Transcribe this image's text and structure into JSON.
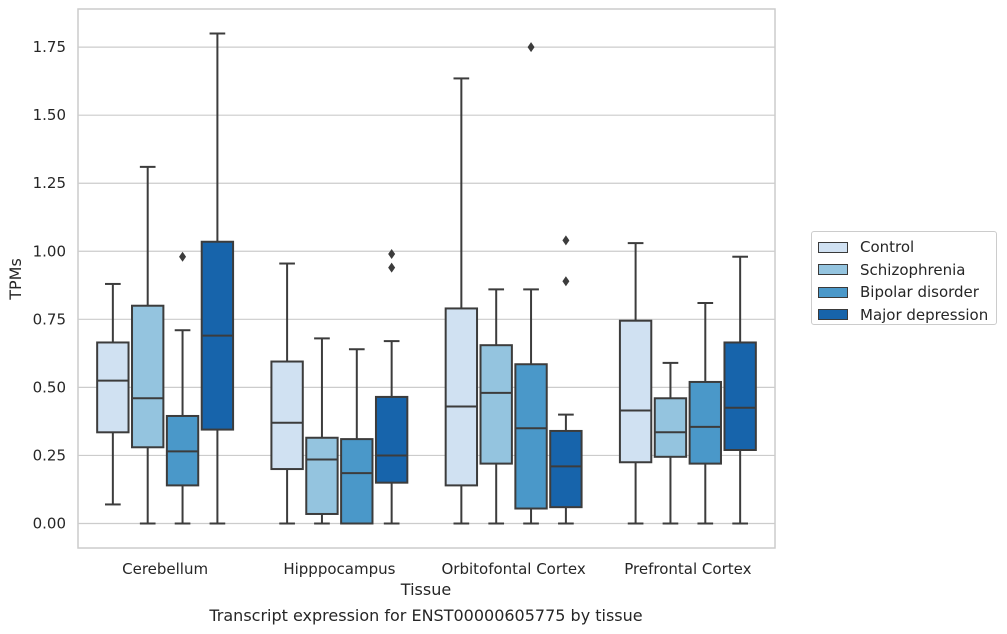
{
  "chart_data": {
    "type": "box",
    "ylabel": "TPMs",
    "xlabel": "Tissue",
    "caption": "Transcript expression for ENST00000605775 by tissue",
    "ylim": [
      -0.09,
      1.89
    ],
    "yticks": [
      "0.00",
      "0.25",
      "0.50",
      "0.75",
      "1.00",
      "1.25",
      "1.50",
      "1.75"
    ],
    "grid": true,
    "legend_position": "right",
    "categories": [
      "Cerebellum",
      "Hipppocampus",
      "Orbitofontal Cortex",
      "Prefrontal Cortex"
    ],
    "series": [
      {
        "name": "Control",
        "color": "#d0e1f2",
        "boxes": [
          {
            "whisker_low": 0.07,
            "q1": 0.335,
            "median": 0.525,
            "q3": 0.665,
            "whisker_high": 0.88,
            "outliers": []
          },
          {
            "whisker_low": 0.0,
            "q1": 0.2,
            "median": 0.37,
            "q3": 0.595,
            "whisker_high": 0.955,
            "outliers": []
          },
          {
            "whisker_low": 0.0,
            "q1": 0.14,
            "median": 0.43,
            "q3": 0.79,
            "whisker_high": 1.635,
            "outliers": []
          },
          {
            "whisker_low": 0.0,
            "q1": 0.225,
            "median": 0.415,
            "q3": 0.745,
            "whisker_high": 1.03,
            "outliers": []
          }
        ]
      },
      {
        "name": "Schizophrenia",
        "color": "#94c4df",
        "boxes": [
          {
            "whisker_low": 0.0,
            "q1": 0.28,
            "median": 0.46,
            "q3": 0.8,
            "whisker_high": 1.31,
            "outliers": []
          },
          {
            "whisker_low": 0.0,
            "q1": 0.035,
            "median": 0.235,
            "q3": 0.315,
            "whisker_high": 0.68,
            "outliers": []
          },
          {
            "whisker_low": 0.0,
            "q1": 0.22,
            "median": 0.48,
            "q3": 0.655,
            "whisker_high": 0.86,
            "outliers": []
          },
          {
            "whisker_low": 0.0,
            "q1": 0.245,
            "median": 0.335,
            "q3": 0.46,
            "whisker_high": 0.59,
            "outliers": []
          }
        ]
      },
      {
        "name": "Bipolar disorder",
        "color": "#4a98c9",
        "boxes": [
          {
            "whisker_low": 0.0,
            "q1": 0.14,
            "median": 0.265,
            "q3": 0.395,
            "whisker_high": 0.71,
            "outliers": [
              0.98
            ]
          },
          {
            "whisker_low": 0.0,
            "q1": 0.0,
            "median": 0.185,
            "q3": 0.31,
            "whisker_high": 0.64,
            "outliers": []
          },
          {
            "whisker_low": 0.0,
            "q1": 0.055,
            "median": 0.35,
            "q3": 0.585,
            "whisker_high": 0.86,
            "outliers": [
              1.75
            ]
          },
          {
            "whisker_low": 0.0,
            "q1": 0.22,
            "median": 0.355,
            "q3": 0.52,
            "whisker_high": 0.81,
            "outliers": []
          }
        ]
      },
      {
        "name": "Major depression",
        "color": "#1764ab",
        "boxes": [
          {
            "whisker_low": 0.0,
            "q1": 0.345,
            "median": 0.69,
            "q3": 1.035,
            "whisker_high": 1.8,
            "outliers": []
          },
          {
            "whisker_low": 0.0,
            "q1": 0.15,
            "median": 0.25,
            "q3": 0.465,
            "whisker_high": 0.67,
            "outliers": [
              0.94,
              0.99
            ]
          },
          {
            "whisker_low": 0.0,
            "q1": 0.06,
            "median": 0.21,
            "q3": 0.34,
            "whisker_high": 0.4,
            "outliers": [
              0.89,
              1.04
            ]
          },
          {
            "whisker_low": 0.0,
            "q1": 0.27,
            "median": 0.425,
            "q3": 0.665,
            "whisker_high": 0.98,
            "outliers": []
          }
        ]
      }
    ]
  }
}
